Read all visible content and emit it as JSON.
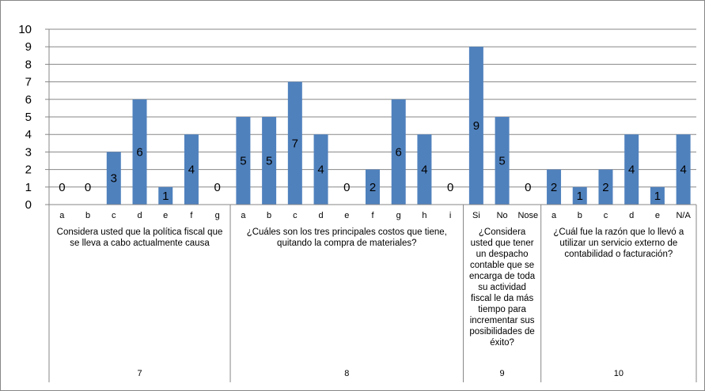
{
  "chart_data": {
    "type": "bar",
    "title": "",
    "xlabel": "",
    "ylabel": "",
    "ylim": [
      0,
      10
    ],
    "yticks": [
      "0",
      "1",
      "2",
      "3",
      "4",
      "5",
      "6",
      "7",
      "8",
      "9",
      "10"
    ],
    "grid": true,
    "legend": "none",
    "bar_color": "#4f81bd",
    "groups": [
      {
        "id": "7",
        "question": "Considera usted que la política fiscal que se lleva a cabo actualmente causa",
        "categories": [
          "a",
          "b",
          "c",
          "d",
          "e",
          "f",
          "g"
        ],
        "values": [
          0,
          0,
          3,
          6,
          1,
          4,
          0
        ]
      },
      {
        "id": "8",
        "question": "¿Cuáles son los tres principales costos que tiene, quitando la compra de materiales?",
        "categories": [
          "a",
          "b",
          "c",
          "d",
          "e",
          "f",
          "g",
          "h",
          "i"
        ],
        "values": [
          5,
          5,
          7,
          4,
          0,
          2,
          6,
          4,
          0
        ]
      },
      {
        "id": "9",
        "question": "¿Considera usted que tener un despacho contable que se encarga de toda su actividad fiscal le da más tiempo para incrementar sus posibilidades de éxito?",
        "categories": [
          "Si",
          "No",
          "Nose"
        ],
        "values": [
          9,
          5,
          0
        ]
      },
      {
        "id": "10",
        "question": "¿Cuál fue la razón que lo llevó a utilizar un servicio externo de contabilidad o facturación?",
        "categories": [
          "a",
          "b",
          "c",
          "d",
          "e",
          "N/A"
        ],
        "values": [
          2,
          1,
          2,
          4,
          1,
          4
        ]
      }
    ]
  }
}
